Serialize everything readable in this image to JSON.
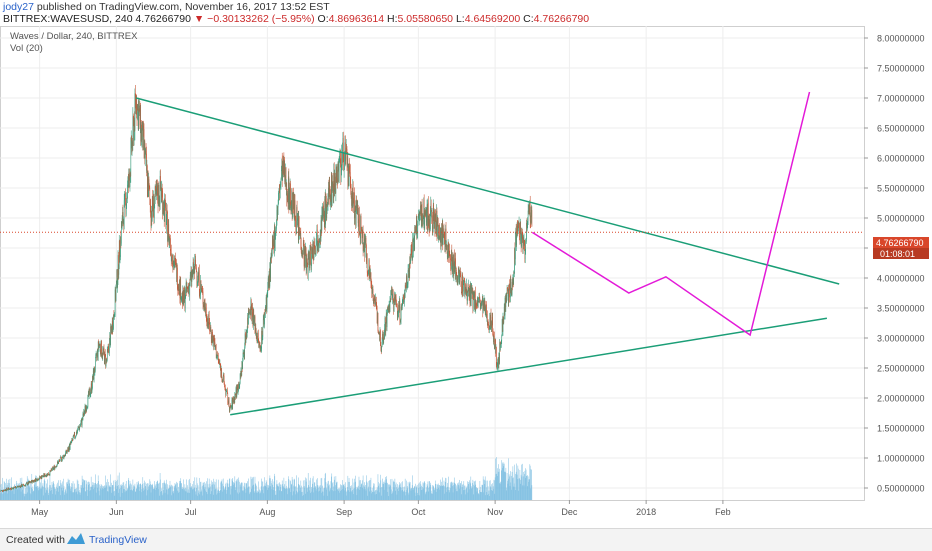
{
  "header": {
    "author": "jody27",
    "published_text": "published on TradingView.com, November 16, 2017 13:52 EST",
    "symbol_line": "BITTREX:WAVESUSD, 240",
    "last_price": "4.76266790",
    "change": "▼ −0.30133262 (−5.95%)",
    "open_label": "O:",
    "open": "4.86963614",
    "high_label": "H:",
    "high": "5.05580650",
    "low_label": "L:",
    "low": "4.64569200",
    "close_label": "C:",
    "close": "4.76266790"
  },
  "pane": {
    "title": "Waves / Dollar, 240, BITTREX",
    "volume_label": "Vol (20)"
  },
  "price_marker": {
    "price": "4.76266790",
    "countdown": "01:08:01"
  },
  "footer": {
    "created_with": "Created with",
    "brand": "TradingView"
  },
  "colors": {
    "up": "#3d9e7e",
    "down": "#c85a3a",
    "trendline": "#1b9e77",
    "projection": "#e31ad8",
    "price_line": "#d9462a",
    "volume": "#6fb7dd"
  },
  "chart_data": {
    "type": "candlestick",
    "y_axis": {
      "range": [
        0.3,
        8.2
      ],
      "ticks": [
        "8.00000000",
        "7.50000000",
        "7.00000000",
        "6.50000000",
        "6.00000000",
        "5.50000000",
        "5.00000000",
        "4.50000000",
        "4.00000000",
        "3.50000000",
        "3.00000000",
        "2.50000000",
        "2.00000000",
        "1.50000000",
        "1.00000000",
        "0.50000000"
      ]
    },
    "x_axis": {
      "range": [
        "2017-04-15",
        "2018-03-30"
      ],
      "ticks": [
        {
          "label": "May",
          "date": "2017-05-01"
        },
        {
          "label": "Jun",
          "date": "2017-06-01"
        },
        {
          "label": "Jul",
          "date": "2017-07-01"
        },
        {
          "label": "Aug",
          "date": "2017-08-01"
        },
        {
          "label": "Sep",
          "date": "2017-09-01"
        },
        {
          "label": "Oct",
          "date": "2017-10-01"
        },
        {
          "label": "Nov",
          "date": "2017-11-01"
        },
        {
          "label": "Dec",
          "date": "2017-12-01"
        },
        {
          "label": "2018",
          "date": "2018-01-01"
        },
        {
          "label": "Feb",
          "date": "2018-02-01"
        }
      ]
    },
    "price_path": [
      {
        "date": "2017-04-15",
        "price": 0.45
      },
      {
        "date": "2017-04-25",
        "price": 0.55
      },
      {
        "date": "2017-05-05",
        "price": 0.75
      },
      {
        "date": "2017-05-12",
        "price": 1.1
      },
      {
        "date": "2017-05-18",
        "price": 1.6
      },
      {
        "date": "2017-05-22",
        "price": 2.2
      },
      {
        "date": "2017-05-25",
        "price": 2.9
      },
      {
        "date": "2017-05-28",
        "price": 2.6
      },
      {
        "date": "2017-05-31",
        "price": 3.4
      },
      {
        "date": "2017-06-03",
        "price": 4.8
      },
      {
        "date": "2017-06-06",
        "price": 5.6
      },
      {
        "date": "2017-06-09",
        "price": 7.0
      },
      {
        "date": "2017-06-12",
        "price": 6.2
      },
      {
        "date": "2017-06-15",
        "price": 5.1
      },
      {
        "date": "2017-06-19",
        "price": 5.5
      },
      {
        "date": "2017-06-23",
        "price": 4.5
      },
      {
        "date": "2017-06-28",
        "price": 3.6
      },
      {
        "date": "2017-07-03",
        "price": 4.2
      },
      {
        "date": "2017-07-08",
        "price": 3.3
      },
      {
        "date": "2017-07-13",
        "price": 2.5
      },
      {
        "date": "2017-07-17",
        "price": 1.8
      },
      {
        "date": "2017-07-21",
        "price": 2.3
      },
      {
        "date": "2017-07-25",
        "price": 3.6
      },
      {
        "date": "2017-07-29",
        "price": 2.8
      },
      {
        "date": "2017-08-03",
        "price": 4.4
      },
      {
        "date": "2017-08-07",
        "price": 5.8
      },
      {
        "date": "2017-08-12",
        "price": 5.1
      },
      {
        "date": "2017-08-17",
        "price": 4.2
      },
      {
        "date": "2017-08-22",
        "price": 4.8
      },
      {
        "date": "2017-08-27",
        "price": 5.5
      },
      {
        "date": "2017-09-01",
        "price": 6.1
      },
      {
        "date": "2017-09-05",
        "price": 5.2
      },
      {
        "date": "2017-09-09",
        "price": 4.6
      },
      {
        "date": "2017-09-13",
        "price": 3.7
      },
      {
        "date": "2017-09-16",
        "price": 2.9
      },
      {
        "date": "2017-09-20",
        "price": 3.7
      },
      {
        "date": "2017-09-24",
        "price": 3.4
      },
      {
        "date": "2017-09-28",
        "price": 4.4
      },
      {
        "date": "2017-10-02",
        "price": 5.1
      },
      {
        "date": "2017-10-07",
        "price": 5.0
      },
      {
        "date": "2017-10-12",
        "price": 4.6
      },
      {
        "date": "2017-10-17",
        "price": 4.0
      },
      {
        "date": "2017-10-22",
        "price": 3.7
      },
      {
        "date": "2017-10-27",
        "price": 3.5
      },
      {
        "date": "2017-10-31",
        "price": 3.2
      },
      {
        "date": "2017-11-02",
        "price": 2.5
      },
      {
        "date": "2017-11-05",
        "price": 3.6
      },
      {
        "date": "2017-11-08",
        "price": 3.9
      },
      {
        "date": "2017-11-10",
        "price": 5.0
      },
      {
        "date": "2017-11-13",
        "price": 4.5
      },
      {
        "date": "2017-11-15",
        "price": 5.2
      },
      {
        "date": "2017-11-16",
        "price": 4.76
      }
    ],
    "drawings": {
      "upper_trendline": [
        {
          "date": "2017-06-09",
          "price": 7.0
        },
        {
          "date": "2018-03-20",
          "price": 3.9
        }
      ],
      "lower_trendline": [
        {
          "date": "2017-07-17",
          "price": 1.72
        },
        {
          "date": "2018-03-15",
          "price": 3.33
        }
      ],
      "projection": [
        {
          "date": "2017-11-16",
          "price": 4.76
        },
        {
          "date": "2017-12-25",
          "price": 3.75
        },
        {
          "date": "2018-01-09",
          "price": 4.02
        },
        {
          "date": "2018-02-12",
          "price": 3.05
        },
        {
          "date": "2018-03-08",
          "price": 7.1
        }
      ]
    }
  }
}
